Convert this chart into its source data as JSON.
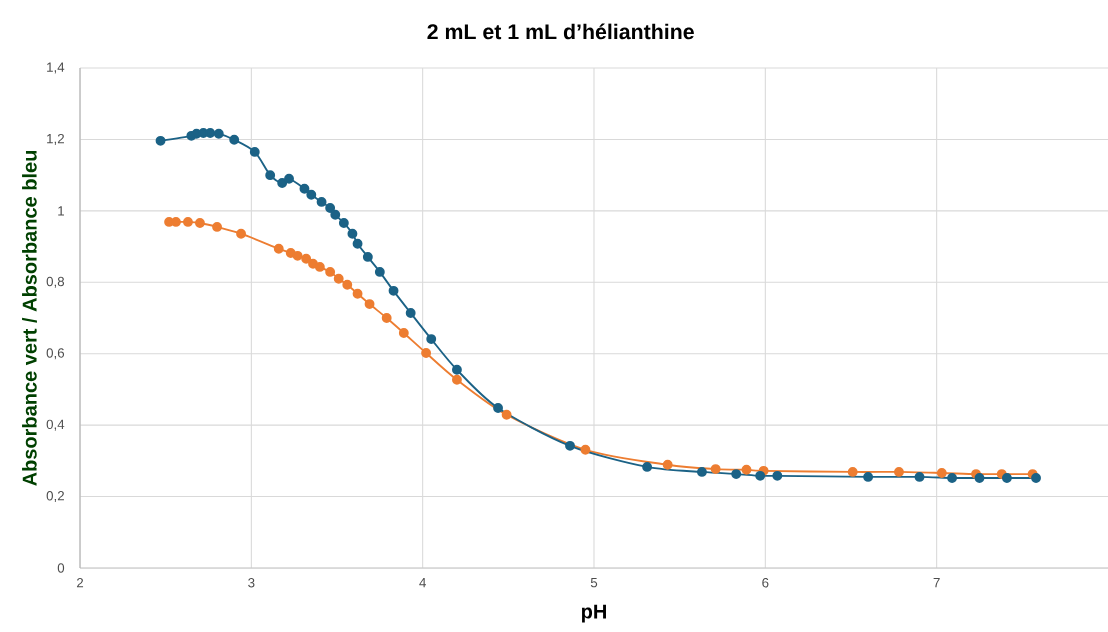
{
  "chart_data": {
    "type": "line",
    "title": "2 mL et 1 mL d’hélianthine",
    "xlabel": "pH",
    "ylabel": "Absorbance vert / Absorbance bleu",
    "series": [
      {
        "color": "#ed7d31",
        "x": [
          2.52,
          2.56,
          2.63,
          2.7,
          2.8,
          2.94,
          3.16,
          3.23,
          3.27,
          3.32,
          3.36,
          3.4,
          3.46,
          3.51,
          3.56,
          3.62,
          3.69,
          3.79,
          3.89,
          4.02,
          4.2,
          4.49,
          4.95,
          5.43,
          5.71,
          5.89,
          5.99,
          6.51,
          6.78,
          7.03,
          7.23,
          7.38,
          7.56
        ],
        "values": [
          0.969,
          0.969,
          0.969,
          0.966,
          0.955,
          0.936,
          0.894,
          0.882,
          0.874,
          0.866,
          0.852,
          0.843,
          0.829,
          0.81,
          0.793,
          0.768,
          0.739,
          0.7,
          0.658,
          0.602,
          0.527,
          0.429,
          0.331,
          0.289,
          0.277,
          0.275,
          0.272,
          0.269,
          0.269,
          0.266,
          0.263,
          0.263,
          0.263
        ]
      },
      {
        "color": "#1b6286",
        "x": [
          2.47,
          2.65,
          2.68,
          2.72,
          2.76,
          2.81,
          2.9,
          3.02,
          3.11,
          3.18,
          3.22,
          3.31,
          3.35,
          3.41,
          3.46,
          3.49,
          3.54,
          3.59,
          3.62,
          3.68,
          3.75,
          3.83,
          3.93,
          4.05,
          4.2,
          4.44,
          4.86,
          5.31,
          5.63,
          5.83,
          5.97,
          6.07,
          6.6,
          6.9,
          7.09,
          7.25,
          7.41,
          7.58
        ],
        "values": [
          1.196,
          1.21,
          1.216,
          1.218,
          1.218,
          1.216,
          1.199,
          1.165,
          1.1,
          1.078,
          1.09,
          1.062,
          1.045,
          1.025,
          1.008,
          0.989,
          0.966,
          0.936,
          0.908,
          0.871,
          0.829,
          0.776,
          0.714,
          0.641,
          0.555,
          0.448,
          0.342,
          0.283,
          0.269,
          0.263,
          0.258,
          0.258,
          0.255,
          0.255,
          0.252,
          0.252,
          0.252,
          0.252
        ]
      }
    ],
    "xlim": [
      2,
      8
    ],
    "xticks": [
      2,
      3,
      4,
      5,
      6,
      7
    ],
    "ylim": [
      0,
      1.4
    ],
    "yticks": [
      0,
      {
        "value": 0.2,
        "label": "0,2"
      },
      {
        "value": 0.4,
        "label": "0,4"
      },
      {
        "value": 0.6,
        "label": "0,6"
      },
      {
        "value": 0.8,
        "label": "0,8"
      },
      1,
      {
        "value": 1.2,
        "label": "1,2"
      },
      {
        "value": 1.4,
        "label": "1,4"
      }
    ],
    "grid": true,
    "marker": "circle"
  }
}
